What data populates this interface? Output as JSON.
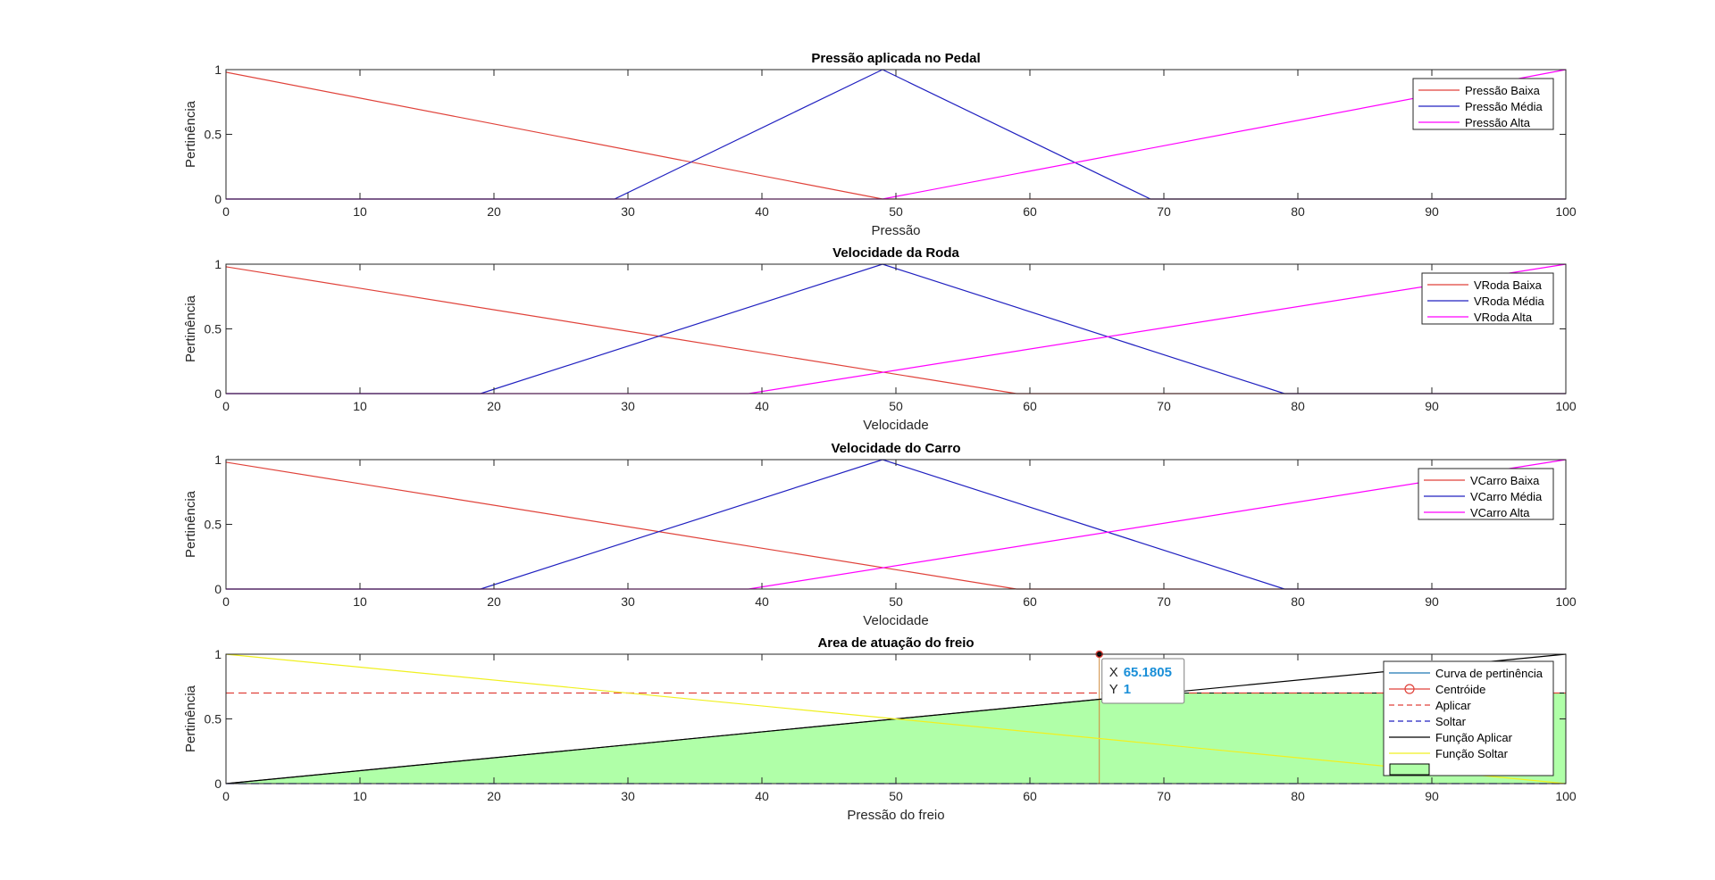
{
  "colors": {
    "red": "#e0423a",
    "blue": "#2020c0",
    "magenta": "#ff00ff",
    "black": "#000000",
    "yellow": "#f0f020",
    "fill_green": "#b0ffa8",
    "centroid_line": "#d08a3a",
    "datatip_value": "#1a8fd8",
    "tick_text": "#262626"
  },
  "chart_data": [
    {
      "type": "line",
      "title": "Pressão aplicada no Pedal",
      "xlabel": "Pressão",
      "ylabel": "Pertinência",
      "xlim": [
        0,
        100
      ],
      "ylim": [
        0,
        1
      ],
      "xticks": [
        0,
        10,
        20,
        30,
        40,
        50,
        60,
        70,
        80,
        90,
        100
      ],
      "yticks": [
        0,
        0.5,
        1
      ],
      "legend_position": "top-right",
      "series": [
        {
          "name": "Pressão Baixa",
          "color": "red",
          "x": [
            0,
            49,
            100
          ],
          "y": [
            0.98,
            0,
            0
          ]
        },
        {
          "name": "Pressão Média",
          "color": "blue",
          "x": [
            0,
            29,
            49,
            69,
            100
          ],
          "y": [
            0,
            0,
            1,
            0,
            0
          ]
        },
        {
          "name": "Pressão Alta",
          "color": "magenta",
          "x": [
            0,
            49,
            100
          ],
          "y": [
            0,
            0,
            1
          ]
        }
      ]
    },
    {
      "type": "line",
      "title": "Velocidade da Roda",
      "xlabel": "Velocidade",
      "ylabel": "Pertinência",
      "xlim": [
        0,
        100
      ],
      "ylim": [
        0,
        1
      ],
      "xticks": [
        0,
        10,
        20,
        30,
        40,
        50,
        60,
        70,
        80,
        90,
        100
      ],
      "yticks": [
        0,
        0.5,
        1
      ],
      "legend_position": "top-right",
      "series": [
        {
          "name": "VRoda Baixa",
          "color": "red",
          "x": [
            0,
            59,
            100
          ],
          "y": [
            0.98,
            0,
            0
          ]
        },
        {
          "name": "VRoda Média",
          "color": "blue",
          "x": [
            0,
            19,
            49,
            79,
            100
          ],
          "y": [
            0,
            0,
            1,
            0,
            0
          ]
        },
        {
          "name": "VRoda Alta",
          "color": "magenta",
          "x": [
            0,
            39,
            100
          ],
          "y": [
            0,
            0,
            1
          ]
        }
      ]
    },
    {
      "type": "line",
      "title": "Velocidade do Carro",
      "xlabel": "Velocidade",
      "ylabel": "Pertinência",
      "xlim": [
        0,
        100
      ],
      "ylim": [
        0,
        1
      ],
      "xticks": [
        0,
        10,
        20,
        30,
        40,
        50,
        60,
        70,
        80,
        90,
        100
      ],
      "yticks": [
        0,
        0.5,
        1
      ],
      "legend_position": "top-right",
      "series": [
        {
          "name": "VCarro Baixa",
          "color": "red",
          "x": [
            0,
            59,
            100
          ],
          "y": [
            0.98,
            0,
            0
          ]
        },
        {
          "name": "VCarro Média",
          "color": "blue",
          "x": [
            0,
            19,
            49,
            79,
            100
          ],
          "y": [
            0,
            0,
            1,
            0,
            0
          ]
        },
        {
          "name": "VCarro Alta",
          "color": "magenta",
          "x": [
            0,
            39,
            100
          ],
          "y": [
            0,
            0,
            1
          ]
        }
      ]
    },
    {
      "type": "area",
      "title": "Area de atuação do freio",
      "xlabel": "Pressão do freio",
      "ylabel": "Pertinência",
      "xlim": [
        0,
        100
      ],
      "ylim": [
        0,
        1
      ],
      "xticks": [
        0,
        10,
        20,
        30,
        40,
        50,
        60,
        70,
        80,
        90,
        100
      ],
      "yticks": [
        0,
        0.5,
        1
      ],
      "legend_position": "top-right",
      "series": [
        {
          "name": "Curva de pertinência",
          "color": "#1f77b4",
          "style": "solid",
          "x": [],
          "y": []
        },
        {
          "name": "Centróide",
          "color": "red",
          "style": "stem",
          "x": [
            65.1805
          ],
          "y": [
            1
          ]
        },
        {
          "name": "Aplicar",
          "color": "red",
          "style": "dashed",
          "x": [
            0,
            100
          ],
          "y": [
            0.7,
            0.7
          ]
        },
        {
          "name": "Soltar",
          "color": "blue",
          "style": "dashed",
          "x": [
            0,
            100
          ],
          "y": [
            0,
            0
          ]
        },
        {
          "name": "Função Aplicar",
          "color": "black",
          "style": "solid",
          "x": [
            0,
            100
          ],
          "y": [
            0,
            1
          ]
        },
        {
          "name": "Função Soltar",
          "color": "yellow",
          "style": "solid",
          "x": [
            0,
            100
          ],
          "y": [
            1,
            0
          ]
        },
        {
          "name": "",
          "color": "fill_green",
          "style": "fill",
          "x": [
            0,
            70,
            100,
            100,
            0
          ],
          "y": [
            0,
            0.7,
            0.7,
            0,
            0
          ]
        }
      ],
      "datatip": {
        "x_label": "X",
        "x_value": "65.1805",
        "y_label": "Y",
        "y_value": "1"
      }
    }
  ]
}
